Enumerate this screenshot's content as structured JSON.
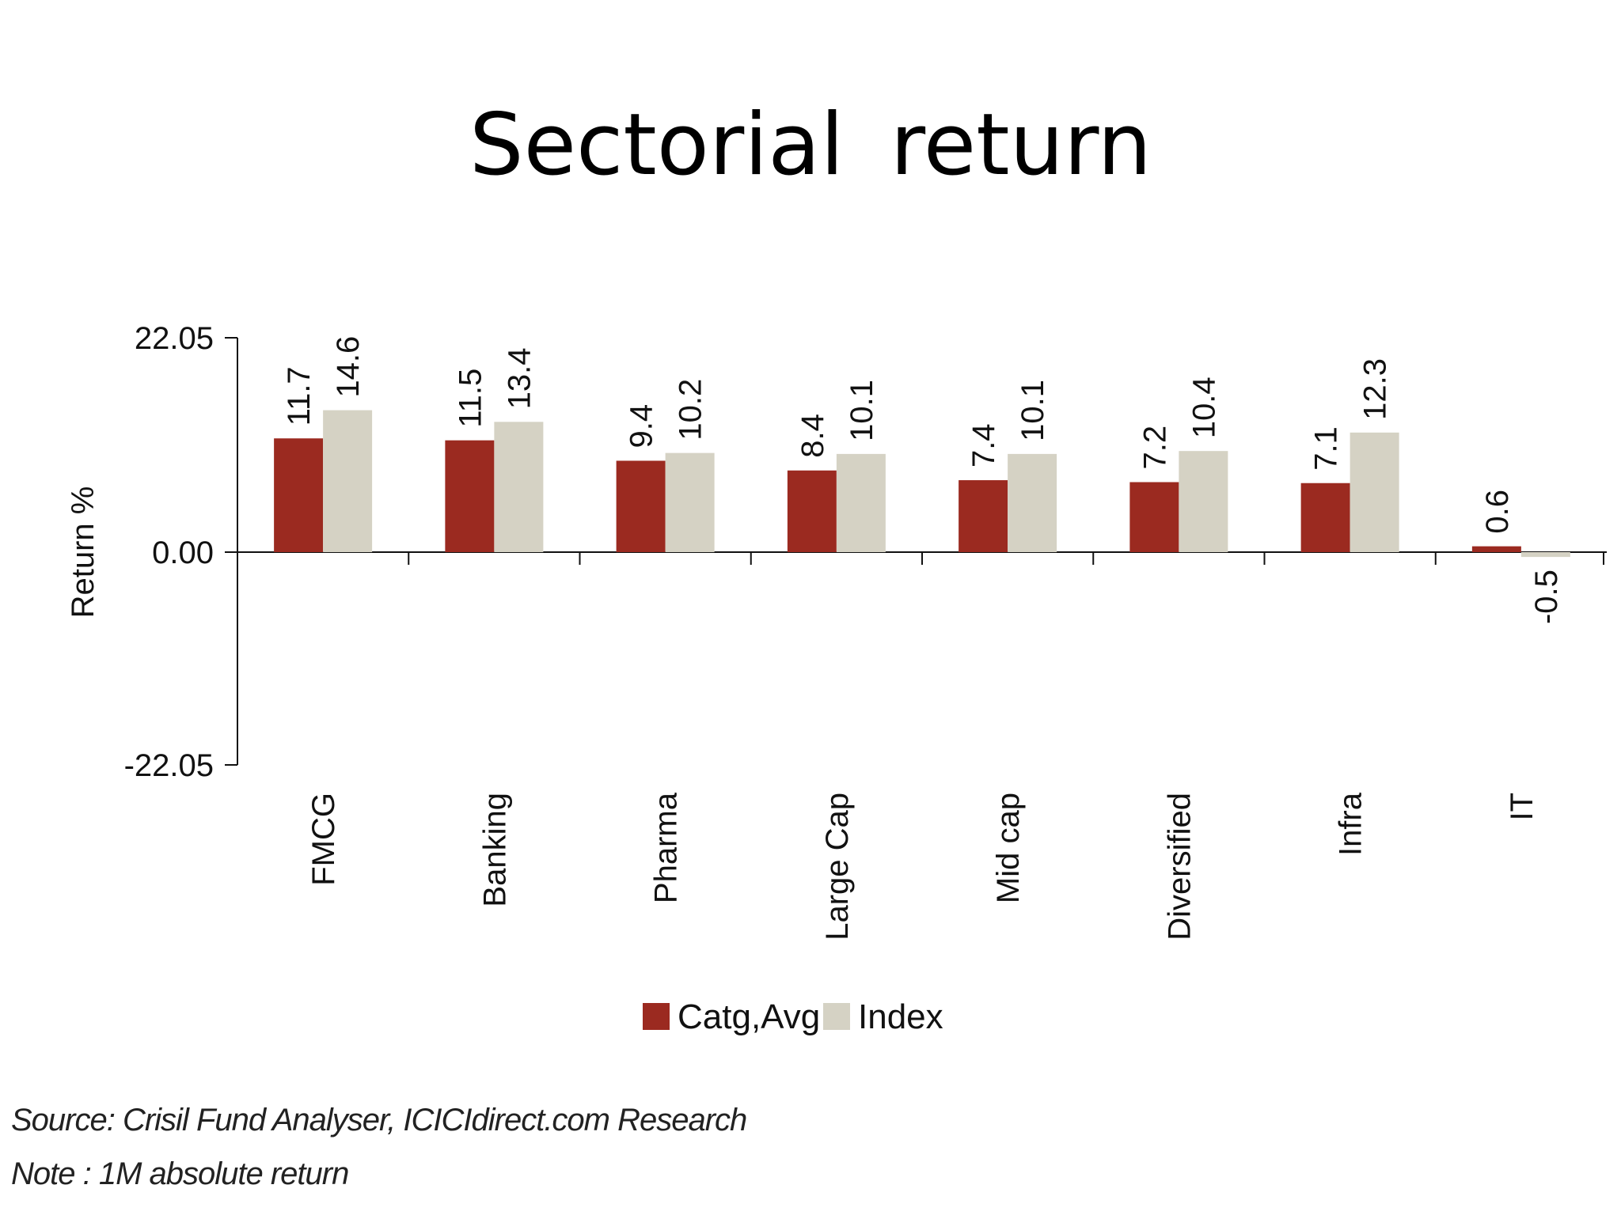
{
  "page": {
    "title": "Sectorial  return"
  },
  "chart_data": {
    "type": "bar",
    "title": "",
    "xlabel": "",
    "ylabel": "Return %",
    "ylim": [
      -22.05,
      22.05
    ],
    "yticks": [
      "22.05",
      "0.00",
      "-22.05"
    ],
    "categories": [
      "FMCG",
      "Banking",
      "Pharma",
      "Large Cap",
      "Mid cap",
      "Diversified",
      "Infra",
      "IT"
    ],
    "series": [
      {
        "name": "Catg,Avg",
        "color": "#9b2a20",
        "values": [
          11.7,
          11.5,
          9.4,
          8.4,
          7.4,
          7.2,
          7.1,
          0.6
        ],
        "labels": [
          "11.7",
          "11.5",
          "9.4",
          "8.4",
          "7.4",
          "7.2",
          "7.1",
          "0.6"
        ]
      },
      {
        "name": "Index",
        "color": "#d5d2c4",
        "values": [
          14.6,
          13.4,
          10.2,
          10.1,
          10.1,
          10.4,
          12.3,
          -0.5
        ],
        "labels": [
          "14.6",
          "13.4",
          "10.2",
          "10.1",
          "10.1",
          "10.4",
          "12.3",
          "-0.5"
        ]
      }
    ],
    "legend_position": "bottom",
    "grid": false
  },
  "footnotes": {
    "source": "Source: Crisil Fund Analyser, ICICIdirect.com Research",
    "note": "Note : 1M absolute return"
  }
}
